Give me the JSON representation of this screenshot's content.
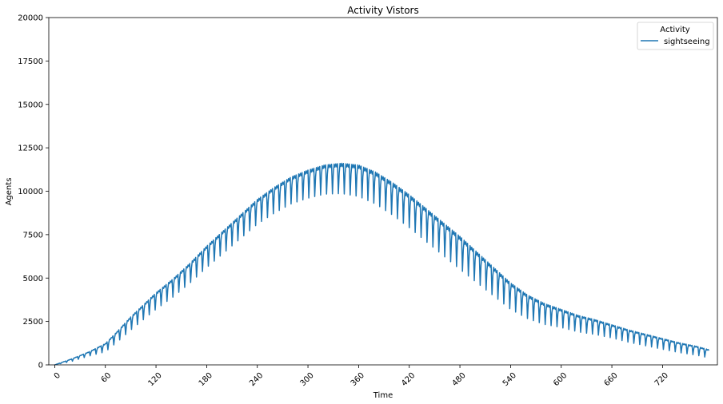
{
  "chart_data": {
    "type": "line",
    "title": "Activity Vistors",
    "xlabel": "Time",
    "ylabel": "Agents",
    "xlim": [
      -7,
      785
    ],
    "ylim": [
      0,
      20000
    ],
    "xticks": [
      0,
      60,
      120,
      180,
      240,
      300,
      360,
      420,
      480,
      540,
      600,
      660,
      720
    ],
    "yticks": [
      0,
      2500,
      5000,
      7500,
      10000,
      12500,
      15000,
      17500,
      20000
    ],
    "legend": {
      "title": "Activity",
      "position": "top-right"
    },
    "series": [
      {
        "name": "sightseeing",
        "color": "#1f77b4",
        "envelope_upper": [
          [
            0,
            0
          ],
          [
            20,
            350
          ],
          [
            40,
            750
          ],
          [
            60,
            1250
          ],
          [
            75,
            2000
          ],
          [
            90,
            2800
          ],
          [
            105,
            3500
          ],
          [
            120,
            4200
          ],
          [
            140,
            5000
          ],
          [
            160,
            5900
          ],
          [
            180,
            6900
          ],
          [
            200,
            7800
          ],
          [
            220,
            8700
          ],
          [
            240,
            9600
          ],
          [
            260,
            10300
          ],
          [
            280,
            10900
          ],
          [
            300,
            11300
          ],
          [
            320,
            11600
          ],
          [
            340,
            11700
          ],
          [
            360,
            11600
          ],
          [
            380,
            11200
          ],
          [
            400,
            10600
          ],
          [
            420,
            9900
          ],
          [
            440,
            9100
          ],
          [
            460,
            8300
          ],
          [
            480,
            7500
          ],
          [
            500,
            6600
          ],
          [
            520,
            5700
          ],
          [
            540,
            4800
          ],
          [
            560,
            4100
          ],
          [
            580,
            3600
          ],
          [
            600,
            3250
          ],
          [
            620,
            2900
          ],
          [
            640,
            2650
          ],
          [
            660,
            2350
          ],
          [
            680,
            2050
          ],
          [
            700,
            1800
          ],
          [
            720,
            1550
          ],
          [
            740,
            1300
          ],
          [
            760,
            1100
          ],
          [
            775,
            900
          ]
        ],
        "dip_depth": [
          [
            0,
            0
          ],
          [
            20,
            150
          ],
          [
            40,
            250
          ],
          [
            60,
            500
          ],
          [
            90,
            800
          ],
          [
            120,
            1000
          ],
          [
            180,
            1300
          ],
          [
            240,
            1500
          ],
          [
            300,
            1700
          ],
          [
            360,
            1900
          ],
          [
            420,
            2000
          ],
          [
            480,
            2000
          ],
          [
            540,
            1600
          ],
          [
            600,
            1100
          ],
          [
            660,
            800
          ],
          [
            720,
            650
          ],
          [
            775,
            500
          ]
        ],
        "dip_period": 7
      }
    ]
  }
}
